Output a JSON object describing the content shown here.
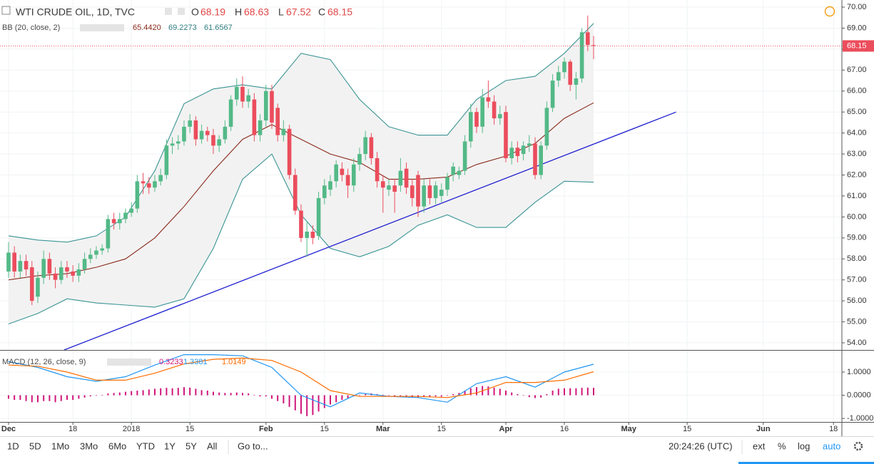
{
  "header": {
    "symbol": "WTI CRUDE OIL, 1D, TVC",
    "ohlc_labels": [
      "O",
      "H",
      "L",
      "C"
    ],
    "bb_title": "BB (20, close, 2)",
    "bb_values": [
      "65.4420",
      "69.2273",
      "61.6567"
    ],
    "macd_title": "MACD (12, 26, close, 9)",
    "macd_values": [
      "0.3233",
      "1.3381",
      "1.0149"
    ]
  },
  "toolbar": {
    "ranges": [
      "1D",
      "5D",
      "1Mo",
      "3Mo",
      "6Mo",
      "YTD",
      "1Y",
      "5Y",
      "All"
    ],
    "goto": "Go to...",
    "clock": "20:24:26 (UTC)",
    "options": [
      "ext",
      "%",
      "log",
      "auto"
    ]
  },
  "chart_data": [
    {
      "type": "candlestick",
      "color_up": "#53b987",
      "color_down": "#eb4d5c",
      "x": [
        0,
        1,
        2,
        3,
        4,
        5,
        6,
        7,
        8,
        9,
        10,
        11,
        12,
        13,
        14,
        15,
        16,
        17,
        18,
        19,
        20,
        21,
        22,
        23,
        24,
        25,
        26,
        27,
        28,
        29,
        30,
        31,
        32,
        33,
        34,
        35,
        36,
        37,
        38,
        39,
        40,
        41,
        42,
        43,
        44,
        45,
        46,
        47,
        48,
        49,
        50,
        51,
        52,
        53,
        54,
        55,
        56,
        57,
        58,
        59,
        60,
        61,
        62,
        63,
        64,
        65,
        66,
        67,
        68,
        69,
        70,
        71,
        72,
        73,
        74,
        75,
        76,
        77,
        78,
        79,
        80,
        81,
        82,
        83,
        84,
        85,
        86,
        87,
        88,
        89,
        90,
        91,
        92,
        93,
        94,
        95,
        96,
        97,
        98,
        99,
        100
      ],
      "open": [
        57.4,
        58.3,
        57.4,
        57.9,
        57.6,
        56.2,
        57.1,
        58.0,
        57.3,
        57.0,
        57.6,
        57.4,
        57.2,
        57.5,
        58.0,
        58.2,
        58.4,
        58.5,
        59.9,
        59.7,
        59.9,
        60.2,
        60.4,
        61.7,
        61.6,
        61.4,
        61.7,
        62.0,
        63.4,
        63.5,
        63.6,
        64.3,
        64.6,
        63.7,
        64.1,
        63.9,
        63.4,
        63.7,
        64.3,
        65.6,
        66.2,
        65.5,
        65.6,
        63.9,
        64.6,
        66.0,
        65.2,
        63.9,
        64.2,
        62.0,
        60.3,
        59.0,
        59.3,
        59.1,
        60.9,
        61.3,
        61.7,
        62.3,
        62.0,
        61.5,
        62.5,
        63.0,
        63.8,
        62.8,
        61.7,
        61.3,
        61.5,
        61.5,
        62.3,
        61.5,
        62.0,
        60.5,
        61.5,
        60.9,
        61.0,
        61.3,
        62.0,
        62.0,
        62.2,
        63.6,
        65.0,
        64.3,
        65.7,
        65.5,
        64.7,
        65.0,
        62.8,
        63.3,
        63.0,
        63.4,
        63.5,
        62.0,
        63.4,
        65.2,
        66.5,
        66.9,
        67.4,
        66.3,
        66.6,
        68.8,
        68.19
      ],
      "high": [
        58.8,
        58.6,
        58.2,
        58.2,
        57.9,
        57.4,
        58.4,
        58.3,
        57.6,
        57.9,
        57.9,
        57.7,
        57.8,
        58.3,
        58.5,
        58.6,
        58.7,
        60.1,
        60.2,
        60.2,
        60.4,
        60.7,
        62.0,
        62.1,
        61.9,
        62.0,
        62.3,
        63.7,
        63.8,
        63.9,
        64.6,
        64.9,
        64.8,
        64.4,
        64.3,
        64.2,
        63.9,
        64.6,
        65.8,
        66.6,
        66.7,
        66.1,
        65.9,
        64.9,
        66.3,
        66.3,
        65.4,
        64.6,
        64.4,
        62.3,
        60.6,
        59.8,
        59.6,
        61.2,
        61.8,
        62.0,
        62.7,
        62.6,
        62.3,
        62.8,
        63.3,
        64.1,
        64.0,
        63.1,
        62.0,
        61.8,
        61.8,
        62.8,
        62.6,
        61.8,
        62.2,
        61.8,
        61.8,
        61.7,
        61.6,
        62.1,
        62.6,
        62.4,
        63.9,
        65.4,
        65.2,
        66.1,
        66.5,
        65.8,
        65.3,
        65.3,
        63.6,
        63.6,
        63.6,
        63.9,
        63.8,
        63.6,
        65.5,
        66.8,
        67.2,
        67.6,
        67.5,
        66.9,
        69.0,
        69.6,
        68.63
      ],
      "low": [
        57.1,
        57.1,
        57.1,
        57.2,
        55.8,
        55.9,
        56.8,
        57.0,
        56.6,
        56.8,
        57.1,
        56.9,
        56.9,
        57.3,
        57.8,
        58.0,
        58.2,
        58.3,
        59.4,
        59.4,
        59.7,
        60.0,
        60.2,
        61.1,
        61.1,
        61.2,
        61.5,
        61.8,
        63.0,
        63.2,
        63.4,
        64.0,
        63.4,
        63.5,
        63.6,
        63.0,
        63.1,
        63.5,
        64.1,
        65.3,
        65.2,
        65.2,
        63.6,
        63.6,
        64.3,
        64.2,
        63.6,
        63.6,
        61.8,
        60.1,
        58.8,
        58.1,
        58.7,
        58.9,
        60.6,
        61.0,
        61.4,
        61.7,
        60.9,
        61.2,
        62.2,
        62.7,
        62.5,
        61.4,
        60.2,
        61.0,
        60.2,
        61.2,
        61.1,
        60.5,
        60.0,
        60.2,
        60.6,
        60.6,
        60.7,
        61.0,
        61.7,
        61.8,
        62.0,
        63.3,
        64.0,
        64.0,
        65.2,
        64.4,
        64.4,
        62.6,
        62.5,
        62.6,
        62.7,
        63.1,
        61.8,
        61.8,
        63.2,
        65.0,
        66.2,
        66.6,
        66.0,
        65.6,
        66.4,
        67.9,
        67.52
      ],
      "close": [
        58.3,
        57.4,
        57.9,
        57.5,
        56.0,
        57.1,
        58.0,
        57.3,
        57.0,
        57.6,
        57.4,
        57.2,
        57.5,
        58.0,
        58.2,
        58.4,
        58.5,
        59.9,
        59.7,
        59.9,
        60.2,
        60.4,
        61.7,
        61.6,
        61.4,
        61.7,
        62.0,
        63.4,
        63.5,
        63.6,
        64.3,
        64.6,
        63.7,
        64.1,
        63.9,
        63.4,
        63.7,
        64.3,
        65.6,
        66.2,
        65.5,
        65.8,
        63.9,
        64.6,
        66.0,
        64.5,
        63.9,
        64.2,
        62.0,
        60.3,
        59.0,
        59.3,
        59.0,
        60.9,
        61.5,
        61.7,
        62.5,
        62.0,
        61.5,
        62.5,
        63.0,
        63.8,
        62.8,
        61.7,
        61.4,
        61.5,
        61.2,
        62.2,
        61.4,
        60.9,
        60.5,
        61.5,
        60.9,
        61.5,
        61.3,
        61.9,
        62.4,
        62.2,
        63.6,
        65.0,
        64.3,
        65.7,
        65.5,
        64.7,
        64.9,
        62.8,
        63.3,
        62.9,
        63.4,
        63.5,
        62.0,
        63.4,
        65.2,
        66.5,
        66.9,
        67.4,
        66.3,
        66.6,
        68.8,
        68.2,
        68.15
      ],
      "series": [
        {
          "color": "#3a9494",
          "x": [
            0,
            5,
            10,
            15,
            20,
            25,
            30,
            35,
            40,
            45,
            50,
            55,
            60,
            65,
            70,
            75,
            80,
            85,
            90,
            95,
            100
          ],
          "values": [
            59.1,
            58.9,
            58.8,
            59.1,
            60.0,
            62.2,
            65.4,
            66.1,
            66.3,
            66.1,
            67.8,
            67.5,
            65.6,
            64.3,
            63.9,
            63.9,
            65.6,
            66.5,
            66.7,
            67.8,
            69.2273
          ]
        },
        {
          "color": "#8b2a1b",
          "x": [
            0,
            5,
            10,
            15,
            20,
            25,
            30,
            35,
            40,
            45,
            50,
            55,
            60,
            65,
            70,
            75,
            80,
            85,
            90,
            95,
            100
          ],
          "values": [
            57.0,
            57.2,
            57.3,
            57.6,
            58.0,
            59.0,
            60.5,
            62.2,
            63.7,
            64.4,
            63.7,
            63.0,
            62.6,
            61.8,
            61.8,
            61.9,
            62.5,
            62.9,
            63.5,
            64.7,
            65.442
          ]
        },
        {
          "color": "#3a9494",
          "x": [
            0,
            5,
            10,
            15,
            20,
            25,
            30,
            35,
            40,
            45,
            50,
            55,
            60,
            65,
            70,
            75,
            80,
            85,
            90,
            95,
            100
          ],
          "values": [
            54.9,
            55.4,
            56.1,
            55.9,
            55.8,
            55.7,
            56.1,
            58.5,
            61.8,
            63.0,
            60.1,
            58.5,
            58.1,
            58.6,
            59.6,
            60.1,
            59.5,
            59.5,
            60.7,
            61.7,
            61.6567
          ]
        },
        {
          "color": "#1f1fd1",
          "x": [
            9.5,
            114.1
          ],
          "values": [
            53.66,
            65.0
          ]
        }
      ],
      "xlim": [
        -1.46,
        142.44
      ],
      "xticks": [
        {
          "value": 0,
          "label": "Dec"
        },
        {
          "value": 11,
          "label": "18"
        },
        {
          "value": 21,
          "label": "2018"
        },
        {
          "value": 31,
          "label": "15"
        },
        {
          "value": 44,
          "label": "Feb"
        },
        {
          "value": 54,
          "label": "15"
        },
        {
          "value": 64,
          "label": "Mar"
        },
        {
          "value": 74,
          "label": "15"
        },
        {
          "value": 85,
          "label": "Apr"
        },
        {
          "value": 95,
          "label": "16"
        },
        {
          "value": 106,
          "label": "May"
        },
        {
          "value": 116,
          "label": "15"
        },
        {
          "value": 129,
          "label": "Jun"
        },
        {
          "value": 141,
          "label": "18"
        }
      ],
      "ylim": [
        53.66,
        70.34
      ],
      "yticks": [
        {
          "value": 54,
          "label": "54.00"
        },
        {
          "value": 55,
          "label": "55.00"
        },
        {
          "value": 56,
          "label": "56.00"
        },
        {
          "value": 57,
          "label": "57.00"
        },
        {
          "value": 58,
          "label": "58.00"
        },
        {
          "value": 59,
          "label": "59.00"
        },
        {
          "value": 60,
          "label": "60.00"
        },
        {
          "value": 61,
          "label": "61.00"
        },
        {
          "value": 62,
          "label": "62.00"
        },
        {
          "value": 63,
          "label": "63.00"
        },
        {
          "value": 64,
          "label": "64.00"
        },
        {
          "value": 65,
          "label": "65.00"
        },
        {
          "value": 66,
          "label": "66.00"
        },
        {
          "value": 67,
          "label": "67.00"
        },
        {
          "value": 68,
          "label": "68.00"
        },
        {
          "value": 69,
          "label": "69.00"
        },
        {
          "value": 70,
          "label": "70.00"
        }
      ],
      "grid": true
    },
    {
      "type": "macd",
      "histogram": {
        "color": "#d0157b",
        "values": [
          -0.15,
          -0.2,
          -0.2,
          -0.25,
          -0.3,
          -0.3,
          -0.25,
          -0.25,
          -0.3,
          -0.25,
          -0.2,
          -0.2,
          -0.15,
          -0.1,
          -0.05,
          -0.02,
          0.02,
          0.08,
          0.1,
          0.12,
          0.15,
          0.18,
          0.2,
          0.22,
          0.25,
          0.28,
          0.3,
          0.32,
          0.3,
          0.32,
          0.35,
          0.33,
          0.28,
          0.22,
          0.2,
          0.15,
          0.12,
          0.1,
          0.1,
          0.12,
          0.1,
          0.08,
          0.02,
          -0.05,
          -0.05,
          -0.15,
          -0.25,
          -0.35,
          -0.5,
          -0.65,
          -0.8,
          -0.9,
          -0.85,
          -0.7,
          -0.55,
          -0.4,
          -0.3,
          -0.2,
          -0.12,
          -0.05,
          0.02,
          0.05,
          0.08,
          0.05,
          0.02,
          -0.02,
          -0.05,
          -0.03,
          -0.05,
          -0.08,
          -0.1,
          -0.08,
          -0.06,
          -0.05,
          -0.06,
          -0.02,
          0.05,
          0.1,
          0.2,
          0.3,
          0.35,
          0.4,
          0.38,
          0.33,
          0.28,
          0.2,
          0.12,
          0.05,
          -0.02,
          -0.08,
          -0.12,
          -0.1,
          0.05,
          0.2,
          0.28,
          0.3,
          0.3,
          0.3,
          0.32,
          0.33,
          0.3233
        ]
      },
      "series": [
        {
          "color": "#2196f3",
          "x": [
            0,
            5,
            10,
            15,
            20,
            25,
            30,
            35,
            40,
            45,
            50,
            55,
            60,
            65,
            70,
            75,
            80,
            85,
            90,
            95,
            100
          ],
          "values": [
            1.45,
            1.2,
            0.8,
            0.6,
            0.8,
            1.3,
            1.75,
            1.75,
            1.7,
            1.2,
            0.0,
            -0.5,
            0.1,
            -0.05,
            -0.1,
            -0.3,
            0.5,
            0.8,
            0.35,
            1.0,
            1.3381
          ]
        },
        {
          "color": "#ff6d00",
          "x": [
            0,
            5,
            10,
            15,
            20,
            25,
            30,
            35,
            40,
            45,
            50,
            55,
            60,
            65,
            70,
            75,
            80,
            85,
            90,
            95,
            100
          ],
          "values": [
            1.3,
            1.25,
            1.0,
            0.65,
            0.65,
            0.95,
            1.35,
            1.55,
            1.6,
            1.5,
            1.0,
            0.2,
            -0.05,
            -0.05,
            -0.05,
            -0.1,
            0.1,
            0.55,
            0.55,
            0.65,
            1.0149
          ]
        }
      ],
      "ylim": [
        -1.15,
        1.89
      ],
      "yticks": [
        {
          "value": 1,
          "label": "1.0000"
        },
        {
          "value": 0,
          "label": "0.0000"
        },
        {
          "value": -1,
          "label": "-1.0000"
        }
      ]
    }
  ]
}
